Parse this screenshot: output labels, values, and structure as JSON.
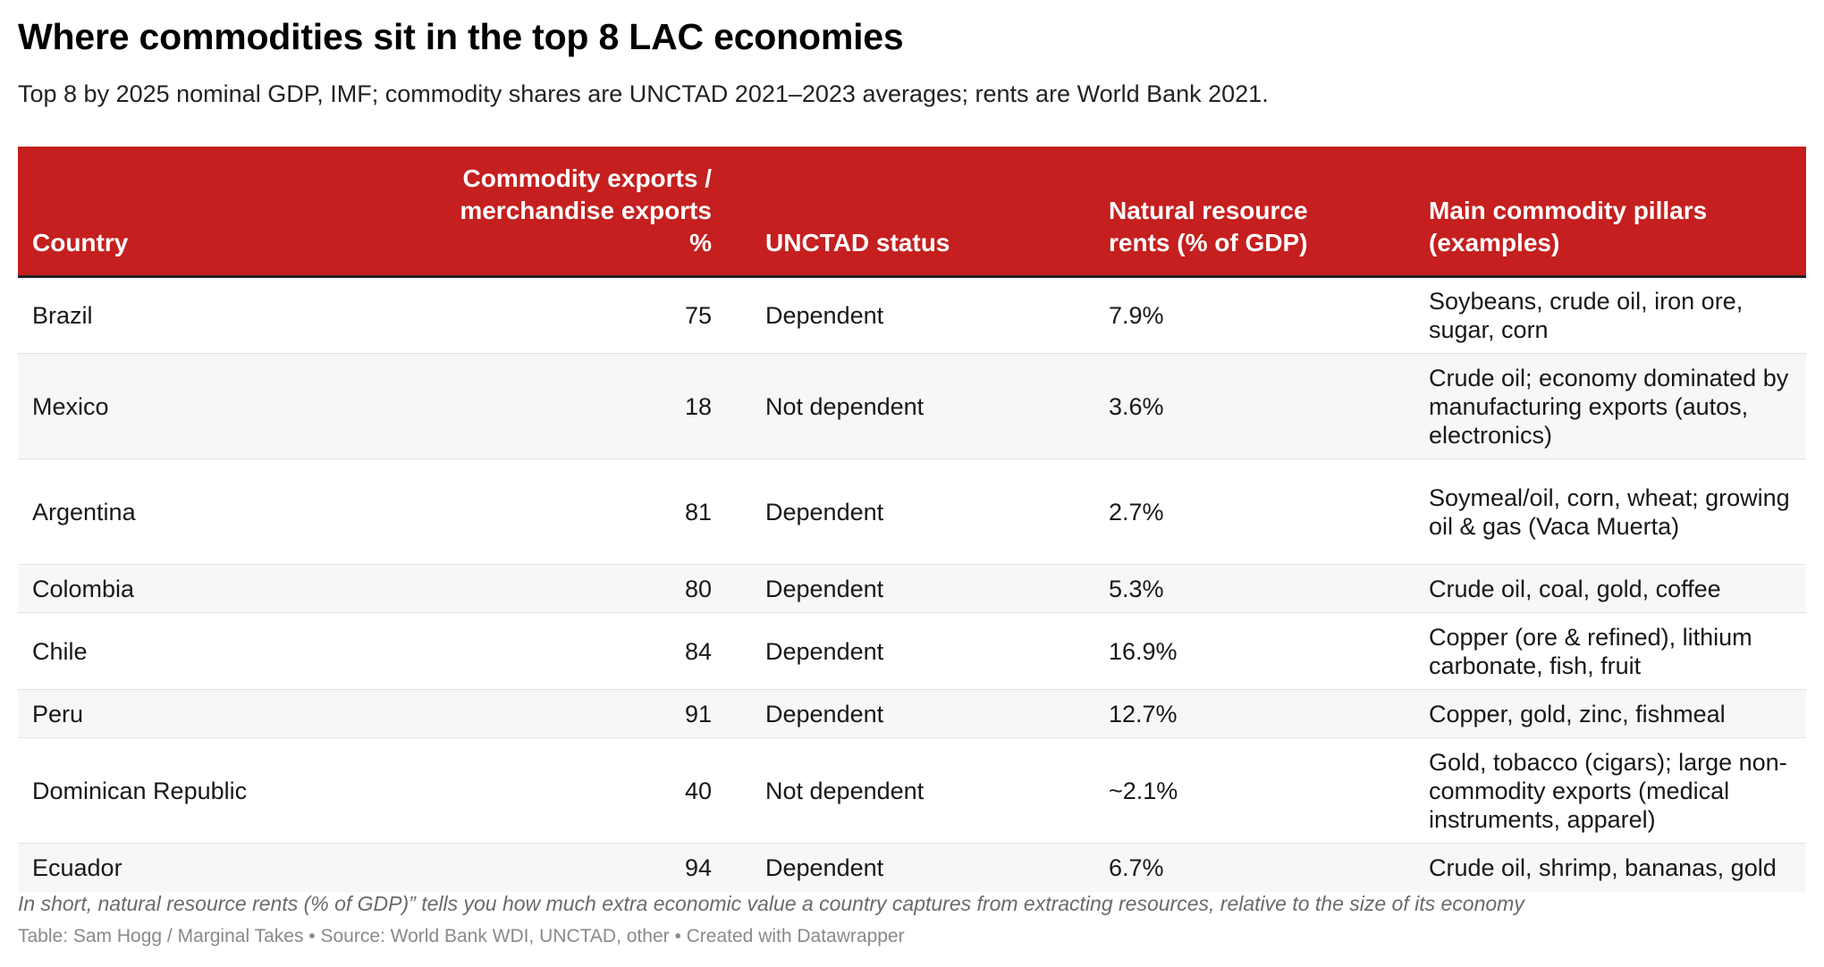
{
  "title": "Where commodities sit in the top 8 LAC economies",
  "subtitle": "Top 8 by 2025 nominal GDP, IMF; commodity shares are UNCTAD 2021–2023 averages; rents are World Bank 2021.",
  "colors": {
    "header_bg": "#c51f1f",
    "header_text": "#ffffff",
    "stripe": "#f7f7f7"
  },
  "chart_data": {
    "type": "table",
    "columns": [
      "Country",
      "Commodity exports / merchandise exports %",
      "UNCTAD status",
      "Natural resource rents (% of GDP)",
      "Main commodity pillars (examples)"
    ],
    "column_lines": [
      [
        "Country"
      ],
      [
        "Commodity exports /",
        "merchandise exports %"
      ],
      [
        "UNCTAD status"
      ],
      [
        "Natural resource",
        "rents (% of GDP)"
      ],
      [
        "Main commodity pillars",
        "(examples)"
      ]
    ],
    "rows": [
      {
        "country": "Brazil",
        "commodity_share": "75",
        "status": "Dependent",
        "rents": "7.9%",
        "pillars": "Soybeans, crude oil, iron ore, sugar, corn"
      },
      {
        "country": "Mexico",
        "commodity_share": "18",
        "status": "Not dependent",
        "rents": "3.6%",
        "pillars": "Crude oil; economy dominated by manufacturing exports (autos, electronics)"
      },
      {
        "country": "Argentina",
        "commodity_share": "81",
        "status": "Dependent",
        "rents": "2.7%",
        "pillars": "Soymeal/oil, corn, wheat; growing oil & gas (Vaca Muerta)"
      },
      {
        "country": "Colombia",
        "commodity_share": "80",
        "status": "Dependent",
        "rents": "5.3%",
        "pillars": "Crude oil, coal, gold, coffee"
      },
      {
        "country": "Chile",
        "commodity_share": "84",
        "status": "Dependent",
        "rents": "16.9%",
        "pillars": "Copper (ore & refined), lithium carbonate, fish, fruit"
      },
      {
        "country": "Peru",
        "commodity_share": "91",
        "status": "Dependent",
        "rents": "12.7%",
        "pillars": "Copper, gold, zinc, fishmeal"
      },
      {
        "country": "Dominican Republic",
        "commodity_share": "40",
        "status": "Not dependent",
        "rents": "~2.1%",
        "pillars": "Gold, tobacco (cigars); large non-commodity exports (medical instruments, apparel)"
      },
      {
        "country": "Ecuador",
        "commodity_share": "94",
        "status": "Dependent",
        "rents": "6.7%",
        "pillars": "Crude oil, shrimp, bananas, gold"
      }
    ]
  },
  "note": "In short, natural resource rents (% of GDP)” tells you how much extra economic value a country captures from extracting resources, relative to the size of its economy",
  "credit": "Table: Sam Hogg / Marginal Takes • Source: World Bank WDI, UNCTAD, other • Created with Datawrapper"
}
